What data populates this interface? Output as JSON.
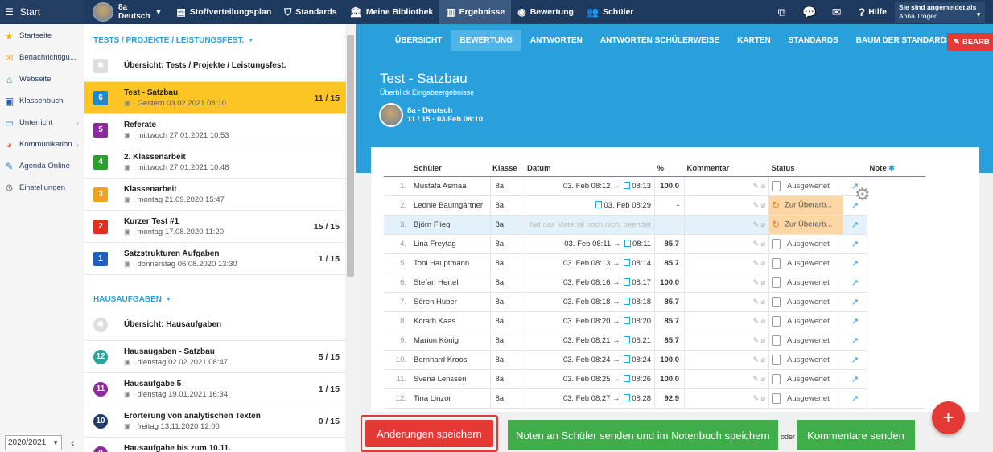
{
  "topbar": {
    "start": "Start",
    "class_line1": "8a",
    "class_line2": "Deutsch",
    "nav": [
      {
        "label": "Stoffverteilungsplan",
        "icon": "▤"
      },
      {
        "label": "Standards",
        "icon": "⛉"
      },
      {
        "label": "Meine Bibliothek",
        "icon": "🏛"
      },
      {
        "label": "Ergebnisse",
        "icon": "▥"
      },
      {
        "label": "Bewertung",
        "icon": "◉"
      },
      {
        "label": "Schüler",
        "icon": "👥"
      }
    ],
    "help": "Hilfe",
    "user_line1": "Sie sind angemeldet als",
    "user_line2": "Anna Tröger"
  },
  "sidebar": {
    "items": [
      {
        "label": "Startseite",
        "icon": "★",
        "color": "#f5b800"
      },
      {
        "label": "Benachrichtigu...",
        "icon": "✉",
        "color": "#f0a030"
      },
      {
        "label": "Webseite",
        "icon": "⌂",
        "color": "#2e9e5b"
      },
      {
        "label": "Klassenbuch",
        "icon": "▣",
        "color": "#1e5fa0"
      },
      {
        "label": "Unterricht",
        "icon": "▭",
        "color": "#2a7fc0"
      },
      {
        "label": "Kommunikation",
        "icon": "◕",
        "color": "#e05030"
      },
      {
        "label": "Agenda Online",
        "icon": "✎",
        "color": "#2a7fc0"
      },
      {
        "label": "Einstellungen",
        "icon": "⚙",
        "color": "#888888"
      }
    ],
    "year": "2020/2021"
  },
  "tests": {
    "header": "TESTS / PROJEKTE / LEISTUNGSFEST.",
    "overview": "Übersicht: Tests / Projekte / Leistungsfest.",
    "items": [
      {
        "num": "6",
        "color": "#1e88c8",
        "title": "Test - Satzbau",
        "date": "Gestern 03.02.2021 08:10",
        "score": "11 / 15"
      },
      {
        "num": "5",
        "color": "#8e2aa0",
        "title": "Referate",
        "date": "mittwoch 27.01.2021 10:53",
        "score": ""
      },
      {
        "num": "4",
        "color": "#2e9e2e",
        "title": "2. Klassenarbeit",
        "date": "mittwoch 27.01.2021 10:48",
        "score": ""
      },
      {
        "num": "3",
        "color": "#f5a020",
        "title": "Klassenarbeit",
        "date": "montag 21.09.2020 15:47",
        "score": ""
      },
      {
        "num": "2",
        "color": "#e03020",
        "title": "Kurzer Test #1",
        "date": "montag 17.08.2020 11:20",
        "score": "15 / 15"
      },
      {
        "num": "1",
        "color": "#1e5fc0",
        "title": "Satzstrukturen Aufgaben",
        "date": "donnerstag 06.08.2020 13:30",
        "score": "1 / 15"
      }
    ]
  },
  "homework": {
    "header": "HAUSAUFGABEN",
    "overview": "Übersicht: Hausaufgaben",
    "items": [
      {
        "num": "12",
        "color": "#26a69a",
        "title": "Hausaugaben - Satzbau",
        "date": "dienstag 02.02.2021 08:47",
        "score": "5 / 15"
      },
      {
        "num": "11",
        "color": "#8e2aa0",
        "title": "Hausaufgabe 5",
        "date": "dienstag 19.01.2021 16:34",
        "score": "1 / 15"
      },
      {
        "num": "10",
        "color": "#1e3a6f",
        "title": "Erörterung von analytischen Texten",
        "date": "freitag 13.11.2020 12:00",
        "score": "0 / 15"
      },
      {
        "num": "9",
        "color": "#8e2aa0",
        "title": "Hausaufgabe bis zum 10.11.",
        "date": "",
        "score": ""
      }
    ]
  },
  "tabs": [
    "ÜBERSICHT",
    "BEWERTUNG",
    "ANTWORTEN",
    "ANTWORTEN SCHÜLERWEISE",
    "KARTEN",
    "STANDARDS",
    "BAUM DER STANDARDS"
  ],
  "edit_button": "BEARB",
  "hero": {
    "title": "Test - Satzbau",
    "subtitle": "Überblick Eingabeergebnisse",
    "class": "8a - Deutsch",
    "info": "11 / 15 · 03.Feb 08:10"
  },
  "table": {
    "headers": [
      "Schüler",
      "Klasse",
      "Datum",
      "%",
      "Kommentar",
      "Status",
      "Note"
    ],
    "rows": [
      {
        "no": "1.",
        "name": "Mustafa Asmaa",
        "class": "8a",
        "start": "03. Feb 08:12",
        "end": "08:13",
        "pct": "100.0",
        "status": "Ausgewertet",
        "review": false
      },
      {
        "no": "2.",
        "name": "Leonie Baumgärtner",
        "class": "8a",
        "start": "",
        "end": "03. Feb 08:29",
        "pct": "-",
        "status": "Zur Überarb...",
        "review": true
      },
      {
        "no": "3.",
        "name": "Björn Flieg",
        "class": "8a",
        "placeholder": "hat das Material noch nicht beendet",
        "pct": "",
        "status": "Zur Überarb...",
        "review": true,
        "highlight": true
      },
      {
        "no": "4.",
        "name": "Lina Freytag",
        "class": "8a",
        "start": "03. Feb 08:11",
        "end": "08:11",
        "pct": "85.7",
        "status": "Ausgewertet",
        "review": false
      },
      {
        "no": "5.",
        "name": "Toni Hauptmann",
        "class": "8a",
        "start": "03. Feb 08:13",
        "end": "08:14",
        "pct": "85.7",
        "status": "Ausgewertet",
        "review": false
      },
      {
        "no": "6.",
        "name": "Stefan Hertel",
        "class": "8a",
        "start": "03. Feb 08:16",
        "end": "08:17",
        "pct": "100.0",
        "status": "Ausgewertet",
        "review": false
      },
      {
        "no": "7.",
        "name": "Sören Huber",
        "class": "8a",
        "start": "03. Feb 08:18",
        "end": "08:18",
        "pct": "85.7",
        "status": "Ausgewertet",
        "review": false
      },
      {
        "no": "8.",
        "name": "Korath Kaas",
        "class": "8a",
        "start": "03. Feb 08:20",
        "end": "08:20",
        "pct": "85.7",
        "status": "Ausgewertet",
        "review": false
      },
      {
        "no": "9.",
        "name": "Marion König",
        "class": "8a",
        "start": "03. Feb 08:21",
        "end": "08:21",
        "pct": "85.7",
        "status": "Ausgewertet",
        "review": false
      },
      {
        "no": "10.",
        "name": "Bernhard Kroos",
        "class": "8a",
        "start": "03. Feb 08:24",
        "end": "08:24",
        "pct": "100.0",
        "status": "Ausgewertet",
        "review": false
      },
      {
        "no": "11.",
        "name": "Svena Lenssen",
        "class": "8a",
        "start": "03. Feb 08:25",
        "end": "08:26",
        "pct": "100.0",
        "status": "Ausgewertet",
        "review": false
      },
      {
        "no": "12.",
        "name": "Tina Linzor",
        "class": "8a",
        "start": "03. Feb 08:27",
        "end": "08:28",
        "pct": "92.9",
        "status": "Ausgewertet",
        "review": false
      }
    ]
  },
  "buttons": {
    "save": "Änderungen speichern",
    "send_grades": "Noten an Schüler senden und im Notenbuch speichern",
    "or": "oder",
    "send_comments": "Kommentare senden"
  }
}
